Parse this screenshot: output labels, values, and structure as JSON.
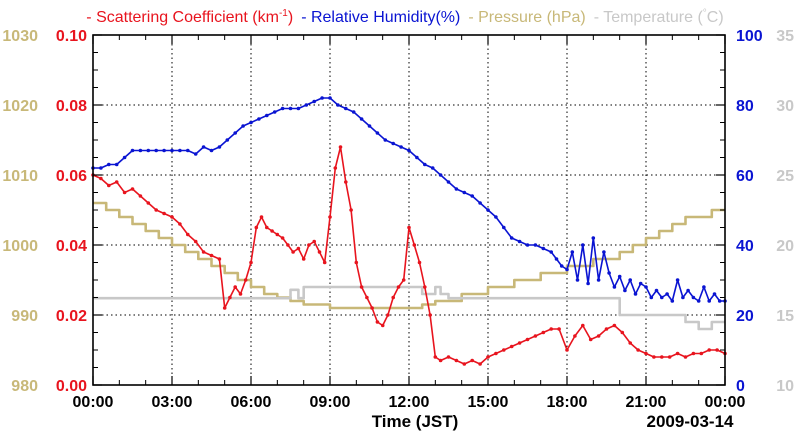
{
  "chart_data": {
    "type": "line",
    "legend": [
      {
        "name": "Scattering Coefficient (km",
        "sup": "-1",
        "tail": ")",
        "color": "#e8141e"
      },
      {
        "name": "Relative Humidity(%)",
        "color": "#0a14d2"
      },
      {
        "name": "Pressure (hPa)",
        "color": "#c8b878"
      },
      {
        "name": "Temperature (",
        "sup": "°",
        "tail": "C)",
        "color": "#c8c8c8"
      }
    ],
    "legend_dash": "-",
    "xlabel": "Time (JST)",
    "date_label": "2009-03-14",
    "x_ticks": [
      "00:00",
      "03:00",
      "06:00",
      "09:00",
      "12:00",
      "15:00",
      "18:00",
      "21:00",
      "00:00"
    ],
    "axes": {
      "scattering": {
        "min": 0,
        "max": 0.1,
        "ticks": [
          "0.00",
          "0.02",
          "0.04",
          "0.06",
          "0.08",
          "0.10"
        ],
        "color": "#e8141e"
      },
      "pressure": {
        "min": 980,
        "max": 1030,
        "ticks": [
          "980",
          "990",
          "1000",
          "1010",
          "1020",
          "1030"
        ],
        "color": "#c8b878"
      },
      "humidity": {
        "min": 0,
        "max": 100,
        "ticks": [
          "0",
          "20",
          "40",
          "60",
          "80",
          "100"
        ],
        "color": "#0a14d2"
      },
      "temperature": {
        "min": 10,
        "max": 35,
        "ticks": [
          "10",
          "15",
          "20",
          "25",
          "30",
          "35"
        ],
        "color": "#c8c8c8"
      }
    },
    "series": [
      {
        "name": "Pressure",
        "axis": "pressure",
        "color": "#c8b878",
        "step": true,
        "x": [
          0,
          0.5,
          1,
          1.5,
          2,
          2.5,
          3,
          3.5,
          4,
          4.5,
          5,
          5.5,
          6,
          6.5,
          7,
          7.5,
          8,
          9,
          10,
          11,
          12,
          12.5,
          13,
          14,
          15,
          16,
          17,
          18,
          19,
          20,
          20.5,
          21,
          21.5,
          22,
          22.5,
          23,
          23.5,
          24
        ],
        "y": [
          1006,
          1005,
          1004,
          1003,
          1002,
          1001,
          1000,
          999,
          998,
          997,
          996,
          995,
          994,
          993,
          992.5,
          992,
          991.5,
          991,
          991,
          991,
          991,
          991.5,
          992,
          993,
          994,
          995,
          996,
          997,
          998,
          999,
          1000,
          1001,
          1002,
          1003,
          1004,
          1004,
          1005,
          1005
        ]
      },
      {
        "name": "Temperature",
        "axis": "temperature",
        "color": "#c8c8c8",
        "step": true,
        "x": [
          0,
          6.8,
          7.5,
          7.8,
          8,
          8.5,
          9,
          12,
          12.5,
          13,
          13.2,
          13.5,
          14,
          18,
          19.5,
          20,
          20.5,
          21,
          22,
          22.5,
          23,
          23.5,
          24
        ],
        "y": [
          16.2,
          16.2,
          16.8,
          16.2,
          17,
          17,
          17,
          17,
          16.5,
          17,
          16.5,
          16.2,
          16.2,
          16.2,
          16.2,
          15,
          15,
          15,
          15,
          14.5,
          14,
          14.5,
          14.5
        ]
      },
      {
        "name": "Relative Humidity",
        "axis": "humidity",
        "color": "#0a14d2",
        "markers": true,
        "x": [
          0,
          0.3,
          0.6,
          0.9,
          1.2,
          1.5,
          1.8,
          2.1,
          2.4,
          2.7,
          3,
          3.3,
          3.6,
          3.9,
          4.2,
          4.5,
          4.8,
          5.1,
          5.4,
          5.7,
          6,
          6.3,
          6.6,
          6.9,
          7.2,
          7.5,
          7.8,
          8.1,
          8.4,
          8.7,
          9,
          9.3,
          9.6,
          9.9,
          10.2,
          10.5,
          10.8,
          11.1,
          11.4,
          11.7,
          12,
          12.3,
          12.6,
          12.9,
          13.2,
          13.5,
          13.8,
          14.1,
          14.4,
          14.7,
          15,
          15.3,
          15.6,
          15.9,
          16.2,
          16.5,
          16.8,
          17.1,
          17.4,
          17.6,
          17.8,
          18,
          18.2,
          18.4,
          18.6,
          18.8,
          19,
          19.2,
          19.4,
          19.6,
          19.8,
          20,
          20.2,
          20.4,
          20.6,
          20.8,
          21,
          21.2,
          21.4,
          21.6,
          21.8,
          22,
          22.2,
          22.4,
          22.6,
          22.8,
          23,
          23.2,
          23.4,
          23.6,
          23.8,
          24
        ],
        "y": [
          62,
          62,
          63,
          63,
          65,
          67,
          67,
          67,
          67,
          67,
          67,
          67,
          67,
          66,
          68,
          67,
          68,
          70,
          72,
          74,
          75,
          76,
          77,
          78,
          79,
          79,
          79,
          80,
          81,
          82,
          82,
          80,
          79,
          78,
          76,
          74,
          72,
          70,
          69,
          68,
          67,
          65,
          63,
          62,
          60,
          58,
          56,
          55,
          54,
          52,
          50,
          48,
          45,
          42,
          41,
          40,
          40,
          39,
          38,
          36,
          34,
          33,
          38,
          30,
          40,
          29,
          42,
          30,
          38,
          32,
          28,
          31,
          27,
          30,
          26,
          29,
          28,
          25,
          27,
          25,
          26,
          24,
          30,
          25,
          27,
          25,
          24,
          28,
          24,
          26,
          24,
          24
        ]
      },
      {
        "name": "Scattering Coefficient",
        "axis": "scattering",
        "color": "#e8141e",
        "markers": true,
        "x": [
          0,
          0.3,
          0.6,
          0.9,
          1.2,
          1.5,
          1.8,
          2.1,
          2.4,
          2.7,
          3,
          3.3,
          3.6,
          3.9,
          4.2,
          4.5,
          4.8,
          5,
          5.2,
          5.4,
          5.6,
          5.8,
          6,
          6.2,
          6.4,
          6.6,
          6.8,
          7,
          7.2,
          7.4,
          7.6,
          7.8,
          8,
          8.2,
          8.4,
          8.6,
          8.8,
          9,
          9.2,
          9.4,
          9.6,
          9.8,
          10,
          10.2,
          10.4,
          10.6,
          10.8,
          11,
          11.2,
          11.4,
          11.6,
          11.8,
          12,
          12.2,
          12.4,
          12.6,
          12.8,
          13,
          13.2,
          13.5,
          13.8,
          14.1,
          14.4,
          14.7,
          15,
          15.3,
          15.6,
          15.9,
          16.2,
          16.5,
          16.8,
          17.1,
          17.4,
          17.7,
          18,
          18.3,
          18.6,
          18.9,
          19.2,
          19.5,
          19.8,
          20.1,
          20.4,
          20.7,
          21,
          21.3,
          21.6,
          21.9,
          22.2,
          22.5,
          22.8,
          23.1,
          23.4,
          23.7,
          24
        ],
        "y": [
          0.06,
          0.059,
          0.057,
          0.058,
          0.055,
          0.056,
          0.054,
          0.052,
          0.05,
          0.049,
          0.048,
          0.046,
          0.043,
          0.041,
          0.038,
          0.037,
          0.036,
          0.022,
          0.025,
          0.028,
          0.026,
          0.03,
          0.035,
          0.045,
          0.048,
          0.045,
          0.044,
          0.043,
          0.042,
          0.04,
          0.038,
          0.039,
          0.036,
          0.04,
          0.041,
          0.038,
          0.035,
          0.048,
          0.062,
          0.068,
          0.058,
          0.05,
          0.035,
          0.028,
          0.025,
          0.022,
          0.018,
          0.017,
          0.02,
          0.025,
          0.028,
          0.03,
          0.045,
          0.04,
          0.035,
          0.028,
          0.02,
          0.008,
          0.007,
          0.008,
          0.007,
          0.006,
          0.007,
          0.006,
          0.008,
          0.009,
          0.01,
          0.011,
          0.012,
          0.013,
          0.014,
          0.015,
          0.016,
          0.016,
          0.01,
          0.014,
          0.017,
          0.013,
          0.014,
          0.016,
          0.017,
          0.015,
          0.012,
          0.01,
          0.009,
          0.008,
          0.008,
          0.008,
          0.009,
          0.008,
          0.009,
          0.009,
          0.01,
          0.01,
          0.009
        ]
      }
    ]
  }
}
